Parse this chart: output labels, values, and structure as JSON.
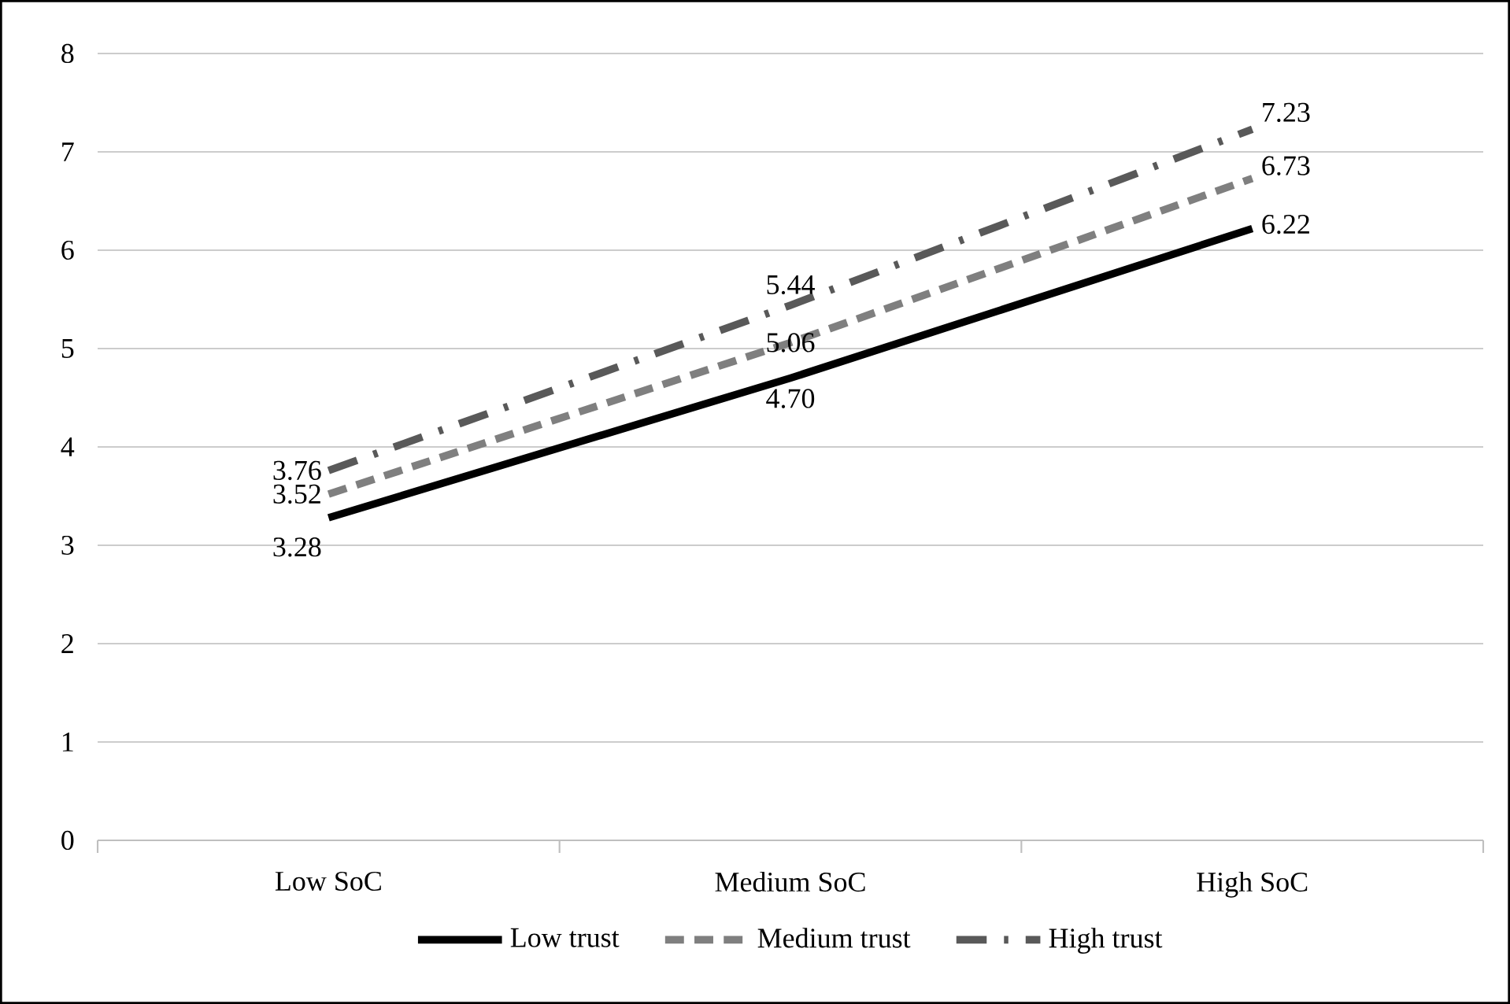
{
  "chart_data": {
    "type": "line",
    "categories": [
      "Low SoC",
      "Medium SoC",
      "High SoC"
    ],
    "series": [
      {
        "name": "Low trust",
        "color": "#000000",
        "line_style": "solid",
        "values": [
          3.28,
          4.7,
          6.22
        ],
        "value_labels": [
          "3.28",
          "4.70",
          "6.22"
        ]
      },
      {
        "name": "Medium trust",
        "color": "#7f7f7f",
        "line_style": "dashed",
        "values": [
          3.52,
          5.06,
          6.73
        ],
        "value_labels": [
          "3.52",
          "5.06",
          "6.73"
        ]
      },
      {
        "name": "High trust",
        "color": "#595959",
        "line_style": "dashdot",
        "values": [
          3.76,
          5.44,
          7.23
        ],
        "value_labels": [
          "3.76",
          "5.44",
          "7.23"
        ]
      }
    ],
    "ylim": [
      0,
      8
    ],
    "yticks": [
      0,
      1,
      2,
      3,
      4,
      5,
      6,
      7,
      8
    ],
    "grid": "y",
    "legend": "bottom",
    "marker": "none"
  }
}
